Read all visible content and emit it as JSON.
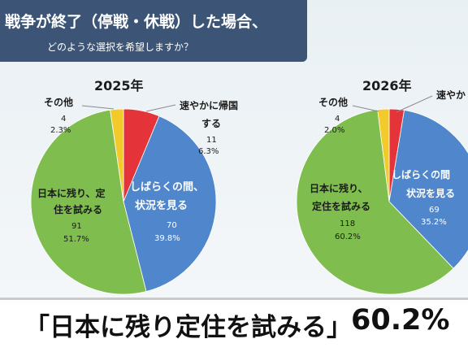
{
  "header": {
    "title_line1": "戦争が終了（停戦・休戦）した場合、",
    "title_line2": "どのような選択を希望しますか？"
  },
  "colors": {
    "green": "#7fbe4e",
    "blue": "#4f86cc",
    "red": "#e5333a",
    "yellow": "#f2cb2a",
    "title_band": "#3c5576"
  },
  "chart_data": [
    {
      "type": "pie",
      "title": "2025年",
      "slices": [
        {
          "label": "速やかに帰国する",
          "count": 11,
          "percent": 6.3,
          "color": "#e5333a",
          "count_text": "11",
          "pct_text": "6.3%"
        },
        {
          "label": "しばらくの間、状況を見る",
          "count": 70,
          "percent": 39.8,
          "color": "#4f86cc",
          "count_text": "70",
          "pct_text": "39.8%"
        },
        {
          "label": "日本に残り、定住を試みる",
          "count": 91,
          "percent": 51.7,
          "color": "#7fbe4e",
          "count_text": "91",
          "pct_text": "51.7%"
        },
        {
          "label": "その他",
          "count": 4,
          "percent": 2.3,
          "color": "#f2cb2a",
          "count_text": "4",
          "pct_text": "2.3%"
        }
      ]
    },
    {
      "type": "pie",
      "title": "2026年",
      "slices": [
        {
          "label": "速やかに帰国する",
          "count": null,
          "percent": 2.6,
          "color": "#e5333a"
        },
        {
          "label": "しばらくの間、状況を見る",
          "count": 69,
          "percent": 35.2,
          "color": "#4f86cc",
          "count_text": "69",
          "pct_text": "35.2%"
        },
        {
          "label": "日本に残り、定住を試みる",
          "count": 118,
          "percent": 60.2,
          "color": "#7fbe4e",
          "count_text": "118",
          "pct_text": "60.2%"
        },
        {
          "label": "その他",
          "count": 4,
          "percent": 2.0,
          "color": "#f2cb2a",
          "count_text": "4",
          "pct_text": "2.0%"
        }
      ]
    }
  ],
  "labels_2025": {
    "other": "その他",
    "return_line1": "速やかに帰国",
    "return_line2": "する",
    "wait_line1": "しばらくの間、",
    "wait_line2": "状況を見る",
    "stay_line1": "日本に残り、定",
    "stay_line2": "住を試みる"
  },
  "labels_2026": {
    "other": "その他",
    "return_partial": "速やか",
    "wait_line1": "しばらくの間",
    "wait_line2": "状況を見る",
    "stay_line1": "日本に残り、",
    "stay_line2": "定住を試みる"
  },
  "caption": {
    "text": "「日本に残り定住を試みる」",
    "percent": "60.2%"
  }
}
